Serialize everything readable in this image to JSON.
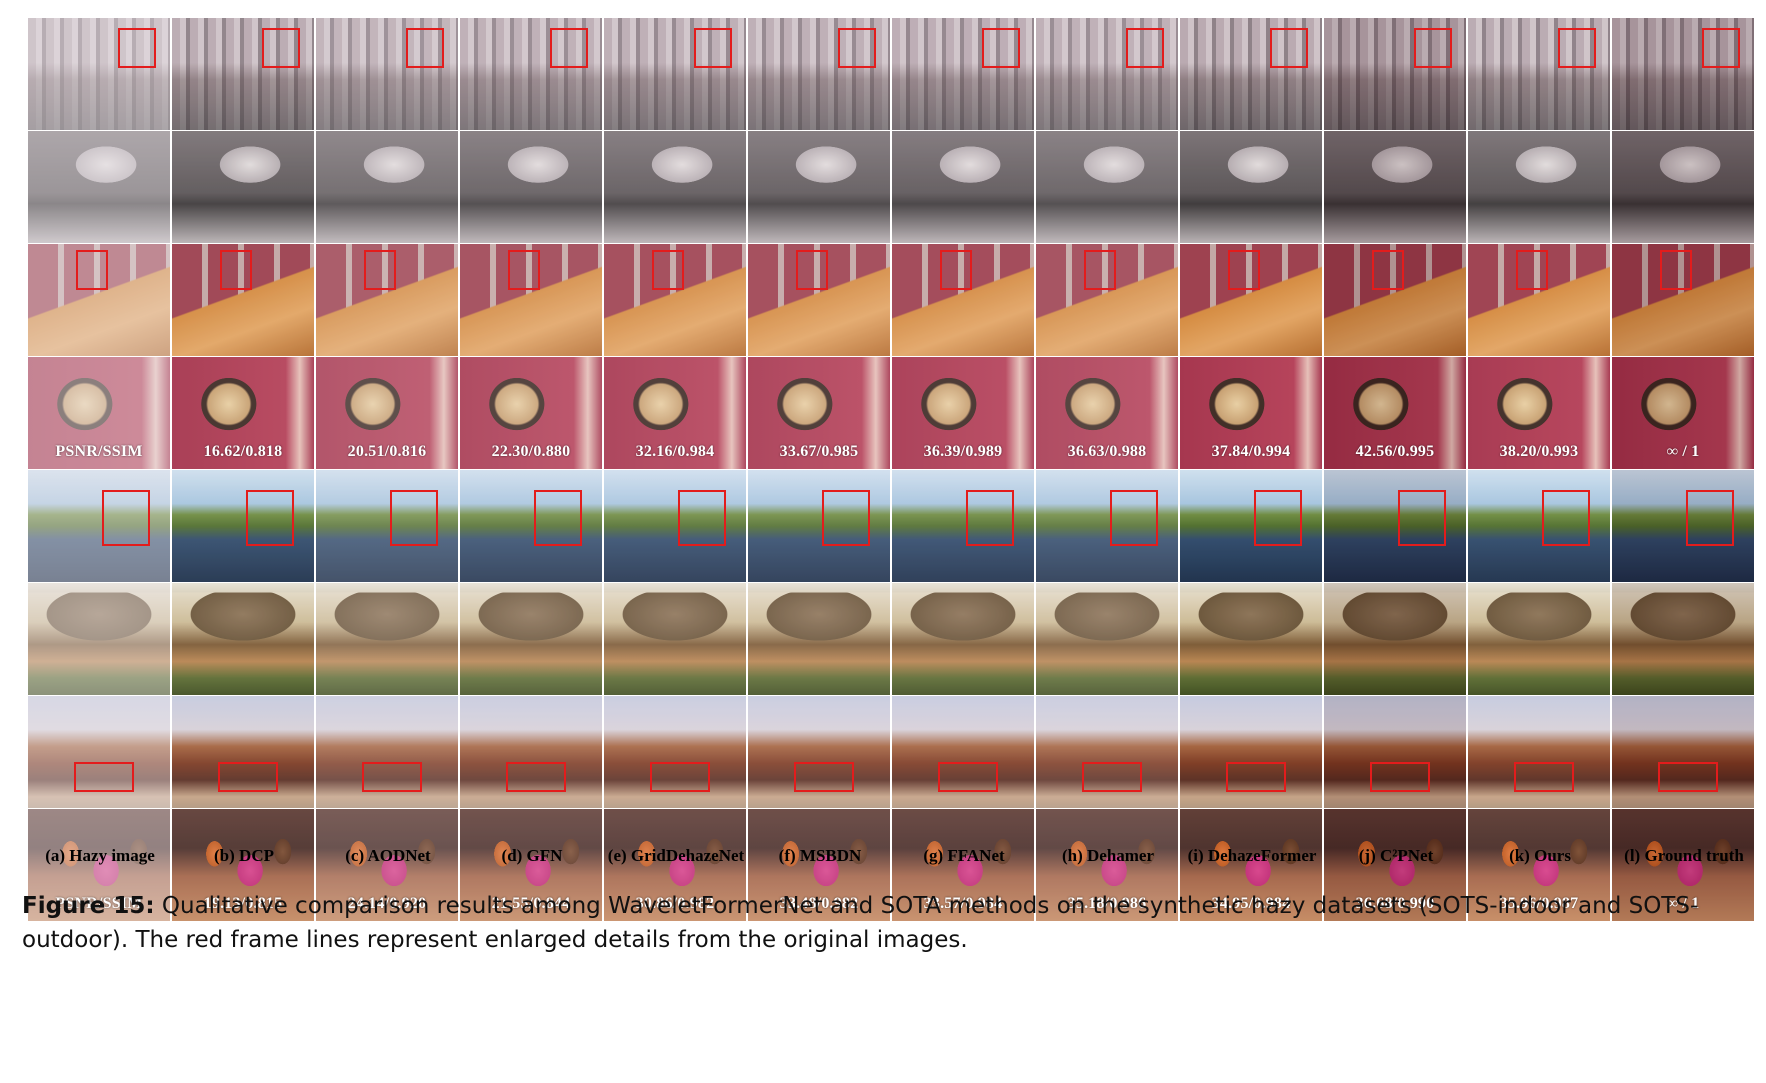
{
  "figure": {
    "label": "Figure 15:",
    "text": " Qualitative comparison results among WaveletFormerNet and SOTA methods on the synthetic hazy datasets (SOTS-indoor and SOTS-outdoor). The red frame lines represent enlarged details from the original images."
  },
  "columns": [
    {
      "caption": "(a) Hazy image",
      "haze": 0.45
    },
    {
      "caption": "(b) DCP",
      "haze": 0.08
    },
    {
      "caption": "(c) AODNet",
      "haze": 0.2
    },
    {
      "caption": "(d) GFN",
      "haze": 0.15
    },
    {
      "caption": "(e) GridDehazeNet",
      "haze": 0.12
    },
    {
      "caption": "(f) MSBDN",
      "haze": 0.12
    },
    {
      "caption": "(g) FFANet",
      "haze": 0.1
    },
    {
      "caption": "(h) Dehamer",
      "haze": 0.15
    },
    {
      "caption": "(i) DehazeFormer",
      "haze": 0.03
    },
    {
      "caption": "(j) C²PNet",
      "haze": 0.0
    },
    {
      "caption": "(k) Ours",
      "haze": 0.05
    },
    {
      "caption": "(l) Ground truth",
      "haze": 0.0
    }
  ],
  "rows": [
    {
      "scene": "scene-dining-wide",
      "redbox": true
    },
    {
      "scene": "scene-dining-zoom",
      "redbox": false
    },
    {
      "scene": "scene-table-wide",
      "redbox": true
    },
    {
      "scene": "scene-table-zoom",
      "redbox": false,
      "metrics": [
        "PSNR/SSIM",
        "16.62/0.818",
        "20.51/0.816",
        "22.30/0.880",
        "32.16/0.984",
        "33.67/0.985",
        "36.39/0.989",
        "36.63/0.988",
        "37.84/0.994",
        "42.56/0.995",
        "38.20/0.993",
        "∞ / 1"
      ]
    },
    {
      "scene": "scene-lake-wide",
      "redbox": true
    },
    {
      "scene": "scene-hut-zoom",
      "redbox": false
    },
    {
      "scene": "scene-station-wide",
      "redbox": true
    },
    {
      "scene": "scene-crowd-zoom",
      "redbox": false,
      "metrics": [
        "PSNR/SSIM",
        "19.13/0.815",
        "24.14/0.920",
        "21.55/0.844",
        "30.86/0.982",
        "33.48/0.982",
        "33.57/0.984",
        "35.18/0.986",
        "34.95/0.984",
        "36.68/0.990",
        "35.96/0.987",
        "∞ / 1"
      ]
    }
  ]
}
